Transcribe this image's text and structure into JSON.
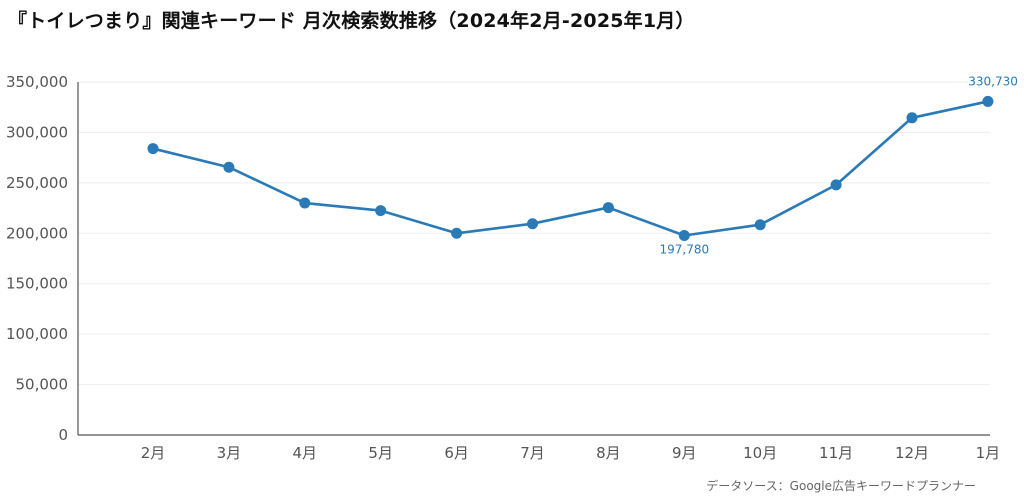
{
  "title": "『トイレつまり』関連キーワード 月次検索数推移（2024年2月-2025年1月）",
  "source": "データソース：Google広告キーワードプランナー",
  "colors": {
    "line": "#2a7ab8",
    "grid": "#eeeeee",
    "axis": "#555555"
  },
  "chart_data": {
    "type": "line",
    "categories": [
      "2月",
      "3月",
      "4月",
      "5月",
      "6月",
      "7月",
      "8月",
      "9月",
      "10月",
      "11月",
      "12月",
      "1月"
    ],
    "values": [
      284000,
      265500,
      230000,
      222500,
      200000,
      209500,
      225500,
      197780,
      208500,
      248000,
      314500,
      330730
    ],
    "ylim": [
      0,
      350000
    ],
    "yticks": [
      0,
      50000,
      100000,
      150000,
      200000,
      250000,
      300000,
      350000
    ],
    "ytick_labels": [
      "0",
      "50,000",
      "100,000",
      "150,000",
      "200,000",
      "250,000",
      "300,000",
      "350,000"
    ],
    "annotations": [
      {
        "index": 7,
        "text": "197,780",
        "position": "below"
      },
      {
        "index": 11,
        "text": "330,730",
        "position": "above"
      }
    ],
    "grid": true,
    "title": "『トイレつまり』関連キーワード 月次検索数推移（2024年2月-2025年1月）",
    "xlabel": "",
    "ylabel": ""
  }
}
